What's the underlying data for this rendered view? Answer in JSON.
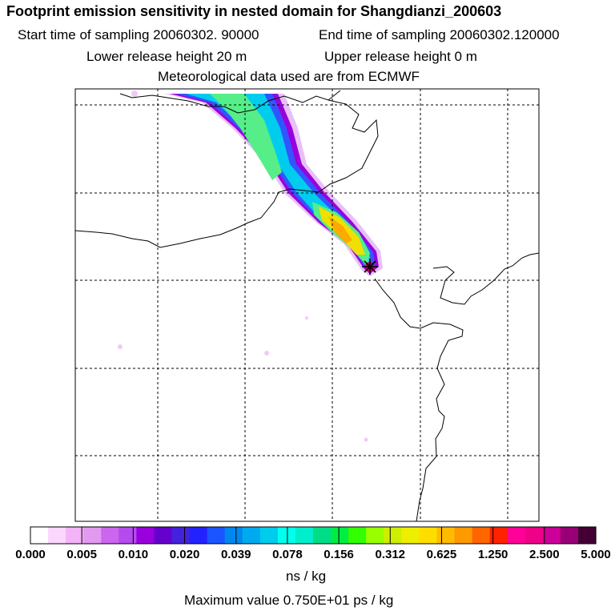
{
  "header": {
    "title": "Footprint emission sensitivity in nested domain for Shangdianzi_200603",
    "start_time": "Start time of sampling 20060302. 90000",
    "end_time": "End time of sampling 20060302.120000",
    "lower_height": "Lower release height   20 m",
    "upper_height": "Upper release height    0 m",
    "met_source": "Meteorological data used are from ECMWF"
  },
  "map": {
    "station_marker": "receptor-star",
    "plume_colors": [
      "#e8c0f8",
      "#9900dd",
      "#3355ff",
      "#00ccee",
      "#55ee88",
      "#f0e000",
      "#ffaa00",
      "#cc0066"
    ]
  },
  "colorbar": {
    "colors": [
      "#ffffff",
      "#fbd6fd",
      "#f2b3f7",
      "#e29af1",
      "#cc66ee",
      "#b54bef",
      "#9900dd",
      "#6600cc",
      "#4422dd",
      "#2222ff",
      "#1a55ff",
      "#0088ee",
      "#00aaee",
      "#00ccee",
      "#00ffee",
      "#00eecc",
      "#00dd88",
      "#00ee44",
      "#33ff00",
      "#99ff00",
      "#cfee00",
      "#eeee00",
      "#ffdd00",
      "#ffbb00",
      "#ff9900",
      "#ff6600",
      "#ff2200",
      "#ff0099",
      "#ee0088",
      "#cc0099",
      "#990077",
      "#440033"
    ],
    "tick_labels": [
      "0.000",
      "0.005",
      "0.010",
      "0.020",
      "0.039",
      "0.078",
      "0.156",
      "0.312",
      "0.625",
      "1.250",
      "2.500",
      "5.000"
    ],
    "unit": "ns / kg"
  },
  "footer": {
    "max_value": "Maximum value  0.750E+01 ps / kg"
  }
}
